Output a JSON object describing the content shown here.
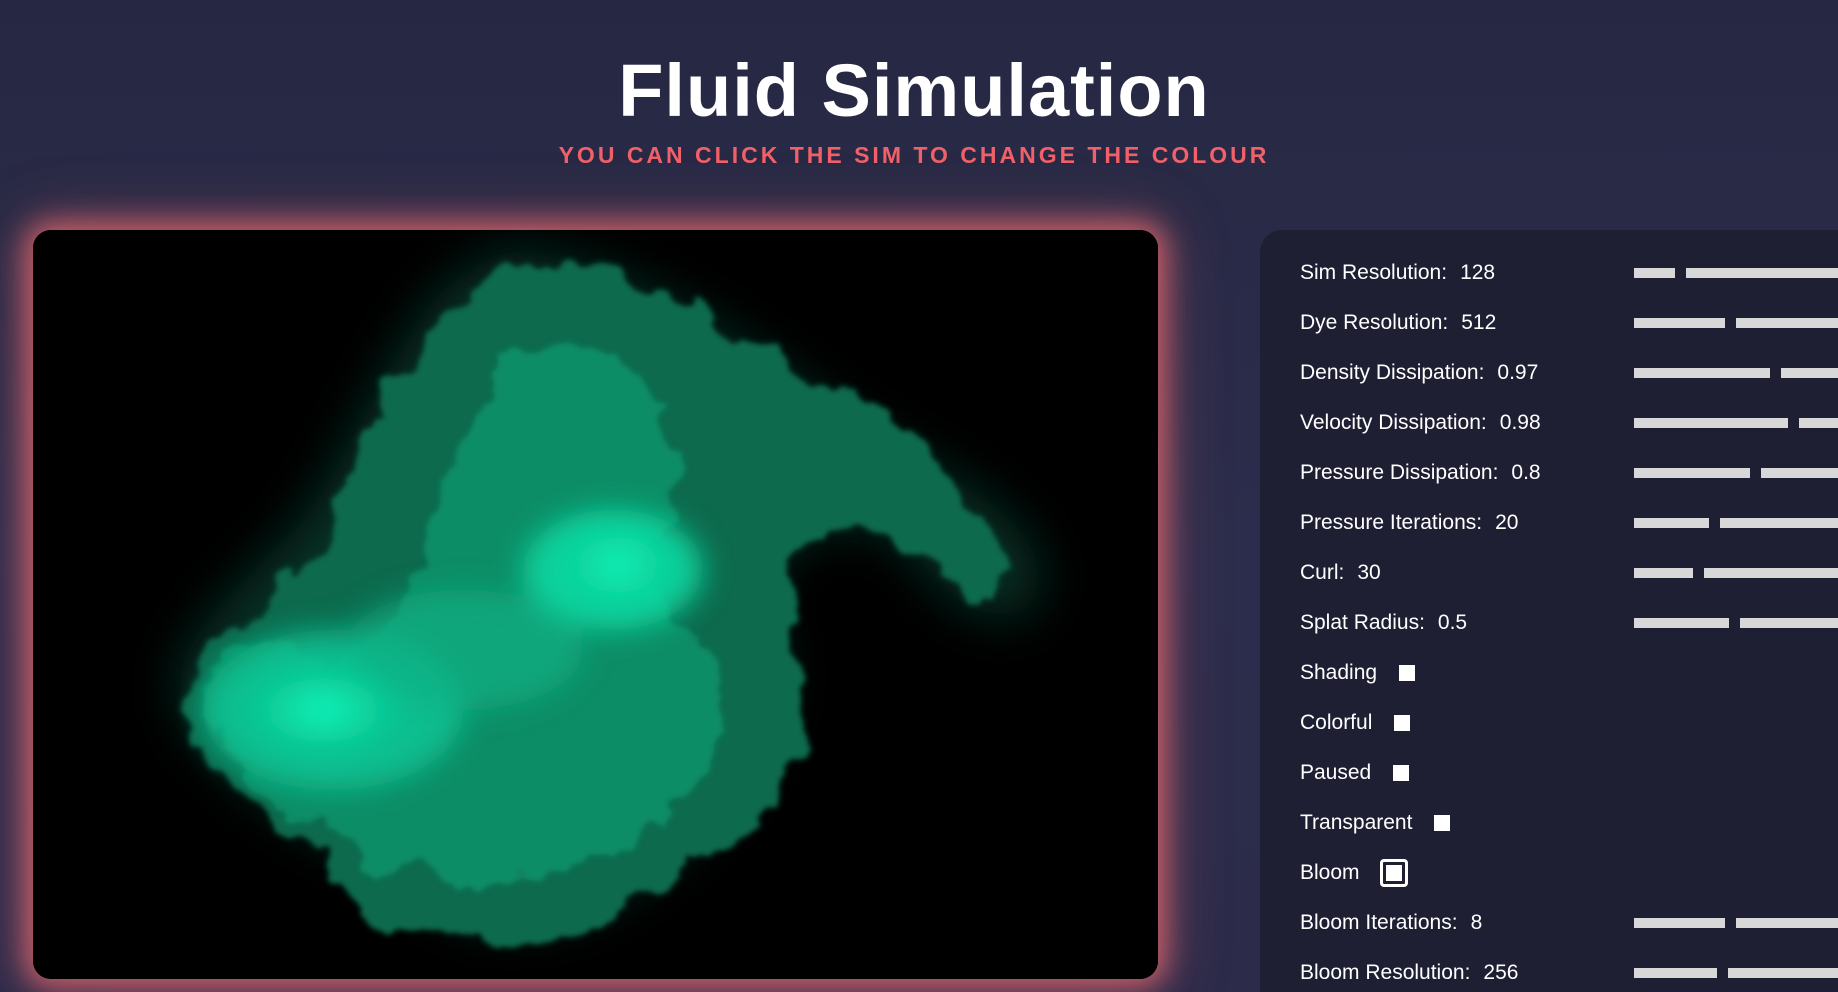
{
  "header": {
    "title": "Fluid Simulation",
    "subtitle": "You can click the sim to change the colour"
  },
  "colors": {
    "background": "#2a2b48",
    "accent": "#f06169",
    "panel": "#1f1f34",
    "fluid": "#00e5a8"
  },
  "controls": {
    "sim_resolution": {
      "label": "Sim Resolution:",
      "value": "128",
      "fraction": 0.2
    },
    "dye_resolution": {
      "label": "Dye Resolution:",
      "value": "512",
      "fraction": 0.45
    },
    "density_dissipation": {
      "label": "Density Dissipation:",
      "value": "0.97",
      "fraction": 0.67
    },
    "velocity_dissipation": {
      "label": "Velocity Dissipation:",
      "value": "0.98",
      "fraction": 0.76
    },
    "pressure_dissipation": {
      "label": "Pressure Dissipation:",
      "value": "0.8",
      "fraction": 0.57
    },
    "pressure_iterations": {
      "label": "Pressure Iterations:",
      "value": "20",
      "fraction": 0.37
    },
    "curl": {
      "label": "Curl:",
      "value": "30",
      "fraction": 0.29
    },
    "splat_radius": {
      "label": "Splat Radius:",
      "value": "0.5",
      "fraction": 0.47
    },
    "shading": {
      "label": "Shading"
    },
    "colorful": {
      "label": "Colorful"
    },
    "paused": {
      "label": "Paused"
    },
    "transparent": {
      "label": "Transparent"
    },
    "bloom": {
      "label": "Bloom"
    },
    "bloom_iterations": {
      "label": "Bloom Iterations:",
      "value": "8",
      "fraction": 0.45
    },
    "bloom_resolution": {
      "label": "Bloom Resolution:",
      "value": "256",
      "fraction": 0.41
    }
  }
}
